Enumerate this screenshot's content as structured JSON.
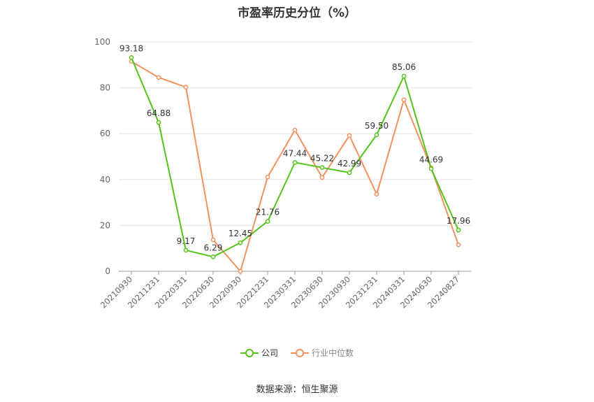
{
  "chart_data": {
    "type": "line",
    "title": "市盈率历史分位（%）",
    "categories": [
      "20210930",
      "20211231",
      "20220331",
      "20220630",
      "20220930",
      "20221231",
      "20230331",
      "20230630",
      "20230930",
      "20231231",
      "20240331",
      "20240630",
      "20240827"
    ],
    "ylim": [
      0,
      100
    ],
    "yticks": [
      0,
      20,
      40,
      60,
      80,
      100
    ],
    "grid": true,
    "legend_position": "bottom",
    "series": [
      {
        "name": "公司",
        "color": "#52c41a",
        "values": [
          93.18,
          64.88,
          9.17,
          6.29,
          12.45,
          21.76,
          47.44,
          45.22,
          42.99,
          59.5,
          85.06,
          44.69,
          17.96
        ],
        "labels": [
          "93.18",
          "64.88",
          "9.17",
          "6.29",
          "12.45",
          "21.76",
          "47.44",
          "45.22",
          "42.99",
          "59.50",
          "85.06",
          "44.69",
          "17.96"
        ]
      },
      {
        "name": "行业中位数",
        "color": "#f4915e",
        "values": [
          91.5,
          84.5,
          80.3,
          13.7,
          0,
          41.1,
          61.6,
          40.9,
          59.2,
          33.6,
          74.8,
          45.1,
          11.5
        ]
      }
    ]
  },
  "source": "数据来源：恒生聚源"
}
